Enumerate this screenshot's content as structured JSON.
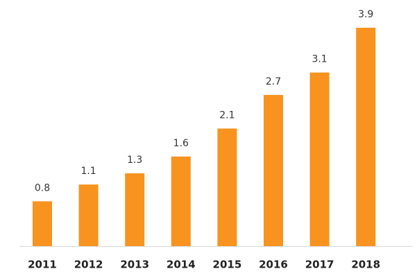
{
  "chart_data": {
    "type": "bar",
    "categories": [
      "2011",
      "2012",
      "2013",
      "2014",
      "2015",
      "2016",
      "2017",
      "2018"
    ],
    "values": [
      0.8,
      1.1,
      1.3,
      1.6,
      2.1,
      2.7,
      3.1,
      3.9
    ],
    "color": "#f7931e"
  }
}
